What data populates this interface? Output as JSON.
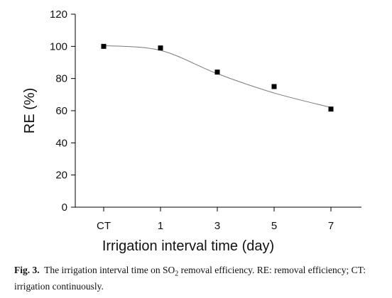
{
  "chart_data": {
    "type": "scatter",
    "categories": [
      "CT",
      "1",
      "3",
      "5",
      "7"
    ],
    "series": [
      {
        "values": [
          100,
          99,
          84,
          75,
          61
        ]
      }
    ],
    "trend_line": {
      "values": [
        100.5,
        97.5,
        83,
        71,
        62
      ]
    },
    "xlabel": "Irrigation interval time (day)",
    "ylabel": "RE (%)",
    "ylim": [
      0,
      120
    ],
    "yticks": [
      0,
      20,
      40,
      60,
      80,
      100,
      120
    ],
    "grid": false,
    "legend": "none"
  },
  "caption": {
    "label": "Fig. 3.",
    "text_before": "The irrigation interval time on SO",
    "subscript": "2",
    "text_after": " removal efficiency. RE: removal efficiency; CT: irrigation continuously."
  }
}
